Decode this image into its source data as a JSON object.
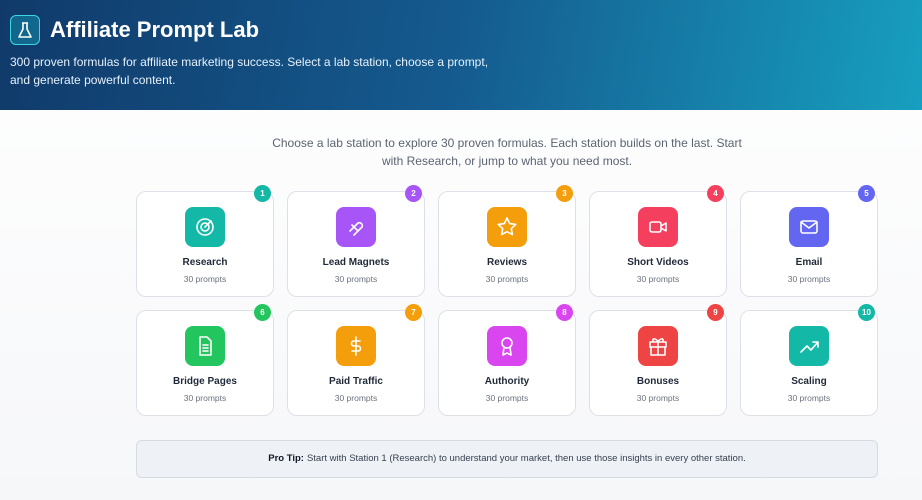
{
  "header": {
    "title": "Affiliate Prompt Lab",
    "subtitle": "300 proven formulas for affiliate marketing success. Select a lab station, choose a prompt, and generate powerful content."
  },
  "intro": "Choose a lab station to explore 30 proven formulas. Each station builds on the last. Start with Research, or jump to what you need most.",
  "stations": [
    {
      "number": "1",
      "name": "Research",
      "count": "30 prompts",
      "color": "#14b8a6"
    },
    {
      "number": "2",
      "name": "Lead Magnets",
      "count": "30 prompts",
      "color": "#a855f7"
    },
    {
      "number": "3",
      "name": "Reviews",
      "count": "30 prompts",
      "color": "#f59e0b"
    },
    {
      "number": "4",
      "name": "Short Videos",
      "count": "30 prompts",
      "color": "#f43f5e"
    },
    {
      "number": "5",
      "name": "Email",
      "count": "30 prompts",
      "color": "#6366f1"
    },
    {
      "number": "6",
      "name": "Bridge Pages",
      "count": "30 prompts",
      "color": "#22c55e"
    },
    {
      "number": "7",
      "name": "Paid Traffic",
      "count": "30 prompts",
      "color": "#f59e0b"
    },
    {
      "number": "8",
      "name": "Authority",
      "count": "30 prompts",
      "color": "#d946ef"
    },
    {
      "number": "9",
      "name": "Bonuses",
      "count": "30 prompts",
      "color": "#ef4444"
    },
    {
      "number": "10",
      "name": "Scaling",
      "count": "30 prompts",
      "color": "#14b8a6"
    }
  ],
  "pro_tip": {
    "label": "Pro Tip:",
    "text": "Start with Station 1 (Research) to understand your market, then use those insights in every other station."
  }
}
